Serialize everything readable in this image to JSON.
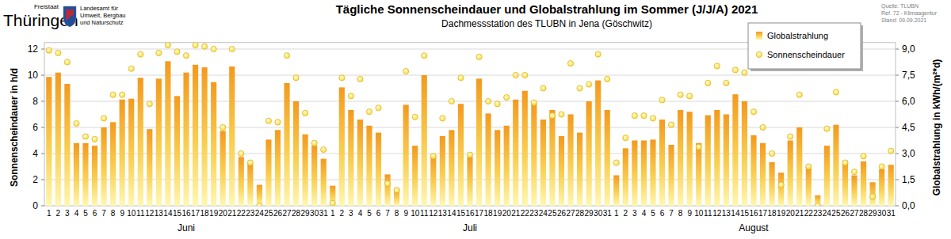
{
  "chart_data": {
    "type": "bar",
    "title": "Tägliche Sonnenscheindauer und Globalstrahlung im Sommer (J/J/A) 2021",
    "subtitle": "Dachmessstation des TLUBN in Jena (Göschwitz)",
    "y_label": "Sonnenscheindauer in h/d",
    "y2_label": "Globalstrahlung in kWh/(m²*d)",
    "annotations": [
      "Freistaat",
      "Thüringen",
      "Landesamt für",
      "Umwelt, Bergbau",
      "und Naturschutz",
      "Quelle: TLUBN",
      "Ref. 72 - Klimaagentur",
      "Stand: 09.09.2021"
    ],
    "groups": [
      "Juni",
      "Juli",
      "August"
    ],
    "categories": [
      "1",
      "2",
      "3",
      "4",
      "5",
      "6",
      "7",
      "8",
      "9",
      "10",
      "11",
      "12",
      "13",
      "14",
      "15",
      "16",
      "17",
      "18",
      "19",
      "20",
      "21",
      "22",
      "23",
      "24",
      "25",
      "26",
      "27",
      "28",
      "29",
      "30",
      "31",
      "1",
      "2",
      "3",
      "4",
      "5",
      "6",
      "7",
      "8",
      "9",
      "10",
      "11",
      "12",
      "13",
      "14",
      "15",
      "16",
      "17",
      "18",
      "19",
      "20",
      "21",
      "22",
      "23",
      "24",
      "25",
      "26",
      "27",
      "28",
      "29",
      "30",
      "31",
      "1",
      "2",
      "3",
      "4",
      "5",
      "6",
      "7",
      "8",
      "9",
      "10",
      "11",
      "12",
      "13",
      "14",
      "15",
      "16",
      "17",
      "18",
      "19",
      "20",
      "21",
      "22",
      "23",
      "24",
      "25",
      "26",
      "27",
      "28",
      "29",
      "30",
      "31"
    ],
    "series": [
      {
        "name": "Globalstrahlung",
        "type": "bar",
        "axis": "y2",
        "color": "#f39a1e",
        "values": [
          7.4,
          7.65,
          7.0,
          3.6,
          3.6,
          3.45,
          4.5,
          4.8,
          6.1,
          6.15,
          7.35,
          4.4,
          7.3,
          8.3,
          6.3,
          7.65,
          8.1,
          7.95,
          7.1,
          4.3,
          8.0,
          2.8,
          2.4,
          1.2,
          3.8,
          4.35,
          7.05,
          6.0,
          4.1,
          3.45,
          2.7,
          1.15,
          6.8,
          5.5,
          4.95,
          4.6,
          4.2,
          1.8,
          1.0,
          5.8,
          3.45,
          7.5,
          2.9,
          4.0,
          4.35,
          5.85,
          2.8,
          7.3,
          5.3,
          4.35,
          4.6,
          6.1,
          6.6,
          5.9,
          4.95,
          5.5,
          4.0,
          5.25,
          4.2,
          6.0,
          7.2,
          5.5,
          1.75,
          3.3,
          3.75,
          3.75,
          3.8,
          4.95,
          3.5,
          5.5,
          5.4,
          3.6,
          5.2,
          5.5,
          5.25,
          6.4,
          6.0,
          4.05,
          3.6,
          2.5,
          1.9,
          3.75,
          4.5,
          2.25,
          0.6,
          3.45,
          4.65,
          2.6,
          1.75,
          2.55,
          1.35,
          2.1,
          2.35
        ]
      },
      {
        "name": "Sonnenscheindauer",
        "type": "scatter",
        "marker": "circle",
        "color": "#f8e04a",
        "values": [
          11.9,
          11.7,
          11.0,
          6.3,
          5.3,
          5.1,
          6.7,
          8.5,
          8.5,
          10.5,
          11.6,
          7.8,
          11.7,
          12.3,
          11.8,
          11.5,
          12.3,
          12.2,
          12.0,
          6.0,
          12.0,
          4.0,
          3.3,
          0.0,
          6.5,
          6.4,
          11.5,
          9.8,
          7.1,
          4.8,
          4.3,
          0.2,
          9.8,
          8.4,
          9.7,
          7.2,
          7.5,
          1.7,
          1.2,
          10.3,
          6.8,
          11.5,
          3.8,
          6.7,
          8.0,
          9.8,
          3.9,
          11.4,
          8.0,
          7.8,
          8.3,
          10.0,
          10.0,
          7.9,
          9.0,
          6.9,
          7.0,
          10.9,
          9.0,
          9.3,
          11.6,
          9.7,
          3.3,
          5.2,
          6.9,
          6.9,
          6.7,
          8.1,
          6.2,
          8.5,
          8.4,
          4.5,
          9.4,
          10.7,
          9.4,
          10.4,
          10.2,
          7.2,
          6.0,
          4.0,
          1.6,
          5.3,
          8.5,
          3.0,
          0.0,
          5.9,
          8.7,
          3.3,
          2.6,
          3.8,
          0.7,
          3.0,
          4.2
        ]
      }
    ],
    "ylim": [
      0,
      12.5
    ],
    "yticks": [
      0,
      2,
      4,
      6,
      8,
      10,
      12
    ],
    "y2lim": [
      0,
      9.375
    ],
    "y2ticks": [
      {
        "value": 0,
        "label": "0,0"
      },
      {
        "value": 1.5,
        "label": "1,5"
      },
      {
        "value": 3,
        "label": "3,0"
      },
      {
        "value": 4.5,
        "label": "4,5"
      },
      {
        "value": 6,
        "label": "6,0"
      },
      {
        "value": 7.5,
        "label": "7,5"
      },
      {
        "value": 9,
        "label": "9,0"
      }
    ],
    "grid": true,
    "legend": "top-right"
  }
}
